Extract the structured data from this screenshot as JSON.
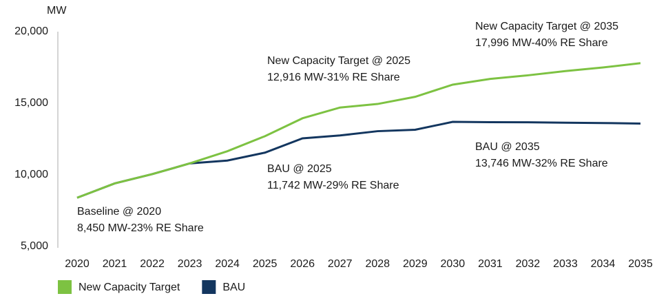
{
  "chart_data": {
    "type": "line",
    "y_label": "MW",
    "categories": [
      "2020",
      "2021",
      "2022",
      "2023",
      "2024",
      "2025",
      "2026",
      "2027",
      "2028",
      "2029",
      "2030",
      "2031",
      "2032",
      "2033",
      "2034",
      "2035"
    ],
    "series": [
      {
        "name": "New Capacity Target",
        "color": "#7dc242",
        "values": [
          8400,
          9400,
          10050,
          10800,
          11650,
          12700,
          13950,
          14700,
          14950,
          15450,
          16300,
          16700,
          16950,
          17250,
          17500,
          17800
        ]
      },
      {
        "name": "BAU",
        "color": "#13365f",
        "values": [
          8400,
          9400,
          10050,
          10800,
          11000,
          11550,
          12550,
          12750,
          13050,
          13150,
          13700,
          13680,
          13670,
          13640,
          13620,
          13580
        ]
      }
    ],
    "ylim": [
      5000,
      20000
    ],
    "yticks": [
      {
        "value": 5000,
        "label": "5,000"
      },
      {
        "value": 10000,
        "label": "10,000"
      },
      {
        "value": 15000,
        "label": "15,000"
      },
      {
        "value": 20000,
        "label": "20,000"
      }
    ],
    "grid": false,
    "legend": "bottom",
    "annotations": [
      {
        "lines": [
          "Baseline @ 2020",
          "8,450 MW-23% RE Share"
        ]
      },
      {
        "lines": [
          "BAU @ 2025",
          "11,742 MW-29% RE Share"
        ]
      },
      {
        "lines": [
          "New Capacity Target @ 2025",
          "12,916 MW-31% RE Share"
        ]
      },
      {
        "lines": [
          "New Capacity Target @ 2035",
          "17,996 MW-40% RE Share"
        ]
      },
      {
        "lines": [
          "BAU @ 2035",
          "13,746 MW-32% RE Share"
        ]
      }
    ]
  }
}
